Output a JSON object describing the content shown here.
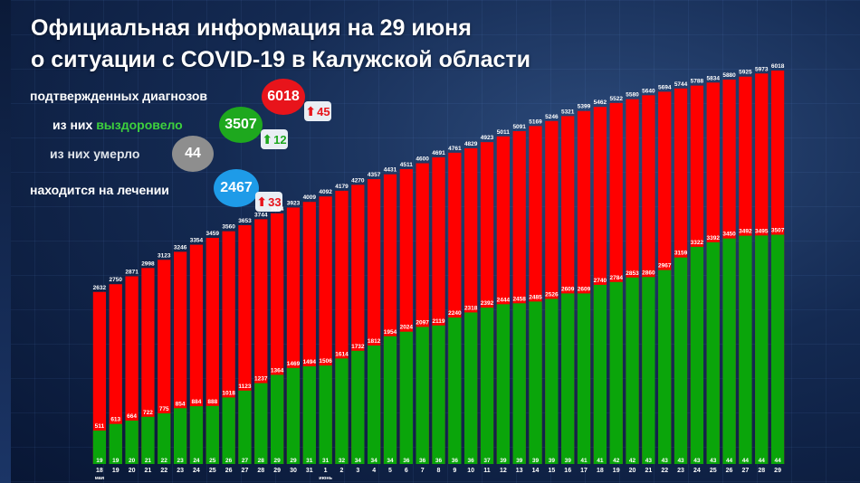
{
  "title": {
    "line1": "Официальная информация на 29 июня",
    "line2": "о ситуации с COVID-19 в Калужской области"
  },
  "stats": {
    "confirmed": {
      "label": "подтвержденных диагнозов",
      "value": "6018",
      "delta": "45",
      "color": "#e8141b"
    },
    "recovered": {
      "label_prefix": "из них ",
      "label_word": "выздоровело",
      "value": "3507",
      "delta": "12",
      "color": "#1ea81e"
    },
    "deaths": {
      "label": "из них умерло",
      "value": "44",
      "color": "#8e8e8e"
    },
    "treatment": {
      "label": "находится на лечении",
      "value": "2467",
      "delta": "33",
      "color": "#1e9be8"
    }
  },
  "colors": {
    "confirmed_bar": "#ff0000",
    "recovered_bar": "#0aa50a",
    "deaths_bar": "#0aa50a",
    "title": "#ffffff"
  },
  "chart_data": {
    "type": "bar",
    "subtype": "overlapping-stacked",
    "categories": [
      "18",
      "19",
      "20",
      "21",
      "22",
      "23",
      "24",
      "25",
      "26",
      "27",
      "28",
      "29",
      "30",
      "31",
      "1",
      "2",
      "3",
      "4",
      "5",
      "6",
      "7",
      "8",
      "9",
      "10",
      "11",
      "12",
      "13",
      "14",
      "15",
      "16",
      "17",
      "18",
      "19",
      "20",
      "21",
      "22",
      "23",
      "24",
      "25",
      "26",
      "27",
      "28",
      "29"
    ],
    "month_labels": {
      "0": "мая",
      "14": "июнь"
    },
    "series": [
      {
        "values": [
          2632,
          2750,
          2871,
          2998,
          3123,
          3246,
          3354,
          3459,
          3560,
          3653,
          3744,
          3834,
          3923,
          4009,
          4092,
          4179,
          4270,
          4357,
          4431,
          4511,
          4600,
          4691,
          4761,
          4829,
          4923,
          5011,
          5091,
          5169,
          5246,
          5321,
          5399,
          5462,
          5522,
          5580,
          5640,
          5694,
          5744,
          5788,
          5834,
          5880,
          5925,
          5973,
          6018
        ],
        "color": "#ff0000"
      },
      {
        "values": [
          511,
          613,
          664,
          722,
          775,
          854,
          884,
          888,
          1018,
          1123,
          1237,
          1364,
          1469,
          1494,
          1506,
          1614,
          1732,
          1812,
          1954,
          2024,
          2097,
          2119,
          2240,
          2318,
          2392,
          2444,
          2458,
          2485,
          2526,
          2609,
          2609,
          2740,
          2784,
          2853,
          2860,
          2967,
          3159,
          3322,
          3392,
          3450,
          3492,
          3495,
          3507
        ],
        "color": "#0aa50a"
      },
      {
        "values": [
          19,
          19,
          20,
          21,
          22,
          23,
          24,
          25,
          26,
          27,
          28,
          29,
          29,
          31,
          31,
          32,
          34,
          34,
          34,
          36,
          36,
          36,
          36,
          36,
          37,
          39,
          39,
          39,
          39,
          39,
          41,
          41,
          42,
          42,
          43,
          43,
          43,
          43,
          43,
          44,
          44,
          44,
          44
        ],
        "color": "#0aa50a"
      }
    ],
    "ylim": [
      0,
      6018
    ]
  }
}
